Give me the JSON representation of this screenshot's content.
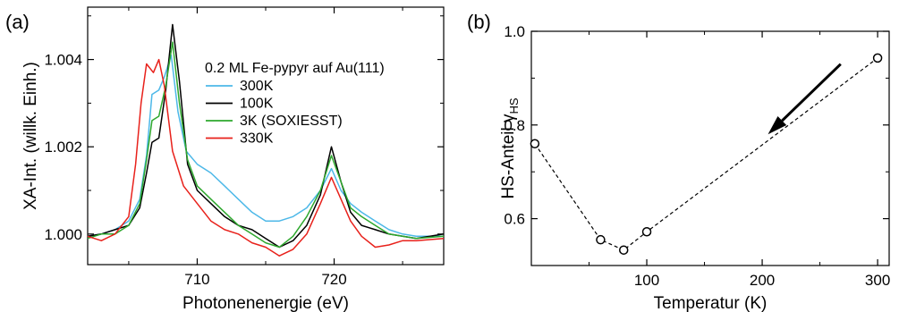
{
  "chart_data": [
    {
      "panel_label": "(a)",
      "type": "line",
      "xlabel": "Photonenenergie (eV)",
      "ylabel": "XA-Int. (willk. Einh.)",
      "xlim": [
        702,
        728
      ],
      "ylim": [
        0.9993,
        1.0052
      ],
      "x_ticks": [
        710,
        720
      ],
      "x_minor_ticks": [
        705,
        715,
        725
      ],
      "y_ticks": [
        1.0,
        1.002,
        1.004
      ],
      "y_tick_labels": [
        "1.000",
        "1.002",
        "1.004"
      ],
      "grid": false,
      "legend_title": "0.2 ML Fe-pypyr auf Au(111)",
      "legend_position": "top-right",
      "series": [
        {
          "name": "300K",
          "color": "#4db8e8",
          "points": [
            [
              702,
              0.99995
            ],
            [
              703,
              1.0
            ],
            [
              704,
              1.0001
            ],
            [
              705,
              1.0003
            ],
            [
              705.8,
              1.0008
            ],
            [
              706.3,
              1.0018
            ],
            [
              706.7,
              1.0032
            ],
            [
              707.2,
              1.0033
            ],
            [
              707.6,
              1.0036
            ],
            [
              708.1,
              1.0041
            ],
            [
              708.6,
              1.0028
            ],
            [
              709.2,
              1.0019
            ],
            [
              710,
              1.0016
            ],
            [
              711,
              1.0014
            ],
            [
              712,
              1.0011
            ],
            [
              713,
              1.0008
            ],
            [
              714,
              1.0005
            ],
            [
              715,
              1.0003
            ],
            [
              716,
              1.0003
            ],
            [
              717,
              1.0004
            ],
            [
              718,
              1.0006
            ],
            [
              719,
              1.001
            ],
            [
              719.8,
              1.0015
            ],
            [
              720.5,
              1.001
            ],
            [
              721.2,
              1.0007
            ],
            [
              722,
              1.0005
            ],
            [
              723,
              1.0003
            ],
            [
              724,
              1.0001
            ],
            [
              725,
              1.0
            ],
            [
              726,
              0.99995
            ],
            [
              728,
              0.99995
            ]
          ]
        },
        {
          "name": "100K",
          "color": "#000000",
          "points": [
            [
              702,
              0.99995
            ],
            [
              703,
              1.0
            ],
            [
              704,
              1.0001
            ],
            [
              705,
              1.0002
            ],
            [
              705.8,
              1.0006
            ],
            [
              706.3,
              1.0014
            ],
            [
              706.7,
              1.0021
            ],
            [
              707.2,
              1.0022
            ],
            [
              707.7,
              1.0033
            ],
            [
              708.2,
              1.0048
            ],
            [
              708.7,
              1.0035
            ],
            [
              709.3,
              1.0016
            ],
            [
              710,
              1.001
            ],
            [
              711,
              1.0007
            ],
            [
              712,
              1.0004
            ],
            [
              713,
              1.0002
            ],
            [
              714,
              1.0001
            ],
            [
              715,
              0.9999
            ],
            [
              716,
              0.9997
            ],
            [
              717,
              0.99985
            ],
            [
              718,
              1.0002
            ],
            [
              719,
              1.0009
            ],
            [
              719.8,
              1.002
            ],
            [
              720.5,
              1.0012
            ],
            [
              721.2,
              1.0005
            ],
            [
              722,
              1.0002
            ],
            [
              723,
              1.0001
            ],
            [
              724,
              1.0
            ],
            [
              725,
              0.99995
            ],
            [
              726,
              0.9999
            ],
            [
              728,
              1.0
            ]
          ]
        },
        {
          "name": "3K (SOXIESST)",
          "color": "#2ea82e",
          "points": [
            [
              702,
              0.9999
            ],
            [
              703,
              1.0
            ],
            [
              704,
              1.0
            ],
            [
              705,
              1.0002
            ],
            [
              705.8,
              1.0007
            ],
            [
              706.3,
              1.0017
            ],
            [
              706.7,
              1.0026
            ],
            [
              707.2,
              1.0027
            ],
            [
              707.7,
              1.0034
            ],
            [
              708.2,
              1.0044
            ],
            [
              708.7,
              1.003
            ],
            [
              709.3,
              1.0017
            ],
            [
              710,
              1.0011
            ],
            [
              711,
              1.0008
            ],
            [
              712,
              1.0005
            ],
            [
              713,
              1.0002
            ],
            [
              714,
              1.0
            ],
            [
              715,
              0.9998
            ],
            [
              716,
              0.9997
            ],
            [
              717,
              0.99995
            ],
            [
              718,
              1.0004
            ],
            [
              719,
              1.001
            ],
            [
              719.8,
              1.0018
            ],
            [
              720.5,
              1.0012
            ],
            [
              721.2,
              1.0006
            ],
            [
              722,
              1.0004
            ],
            [
              723,
              1.0002
            ],
            [
              724,
              1.0
            ],
            [
              725,
              0.99995
            ],
            [
              726,
              0.9999
            ],
            [
              728,
              0.99995
            ]
          ]
        },
        {
          "name": "330K",
          "color": "#e8211b",
          "points": [
            [
              702,
              0.99995
            ],
            [
              703,
              0.99985
            ],
            [
              704,
              1.0
            ],
            [
              705,
              1.0004
            ],
            [
              705.5,
              1.0016
            ],
            [
              705.9,
              1.003
            ],
            [
              706.3,
              1.0039
            ],
            [
              706.8,
              1.0037
            ],
            [
              707.2,
              1.004
            ],
            [
              707.6,
              1.0034
            ],
            [
              708.2,
              1.0019
            ],
            [
              709,
              1.0011
            ],
            [
              710,
              1.0007
            ],
            [
              711,
              1.0003
            ],
            [
              712,
              1.0001
            ],
            [
              713,
              1.0
            ],
            [
              714,
              0.9998
            ],
            [
              715,
              0.9997
            ],
            [
              716,
              0.9995
            ],
            [
              717,
              0.99965
            ],
            [
              718,
              1.0
            ],
            [
              719,
              1.0007
            ],
            [
              719.8,
              1.0013
            ],
            [
              720.5,
              1.0008
            ],
            [
              721.2,
              1.0003
            ],
            [
              722,
              0.99995
            ],
            [
              723,
              0.9997
            ],
            [
              724,
              0.99975
            ],
            [
              725,
              0.99985
            ],
            [
              726,
              0.99985
            ],
            [
              728,
              0.9999
            ]
          ]
        }
      ]
    },
    {
      "panel_label": "(b)",
      "type": "scatter",
      "xlabel": "Temperatur (K)",
      "ylabel": "HS-Anteil γHS",
      "ylabel_main": "HS-Anteil γ",
      "ylabel_sub": "HS",
      "xlim": [
        0,
        310
      ],
      "ylim": [
        0.5,
        1.0
      ],
      "x_ticks": [
        100,
        200,
        300
      ],
      "y_ticks": [
        0.6,
        0.8,
        1.0
      ],
      "y_tick_labels": [
        "0.6",
        "0.8",
        "1.0"
      ],
      "grid": false,
      "connector": "dashed",
      "arrow": {
        "from": [
          268,
          0.93
        ],
        "to": [
          205,
          0.78
        ],
        "meaning": "direction of measurement sequence"
      },
      "x": [
        3,
        60,
        80,
        100,
        300
      ],
      "y": [
        0.76,
        0.555,
        0.533,
        0.572,
        0.943
      ]
    }
  ]
}
